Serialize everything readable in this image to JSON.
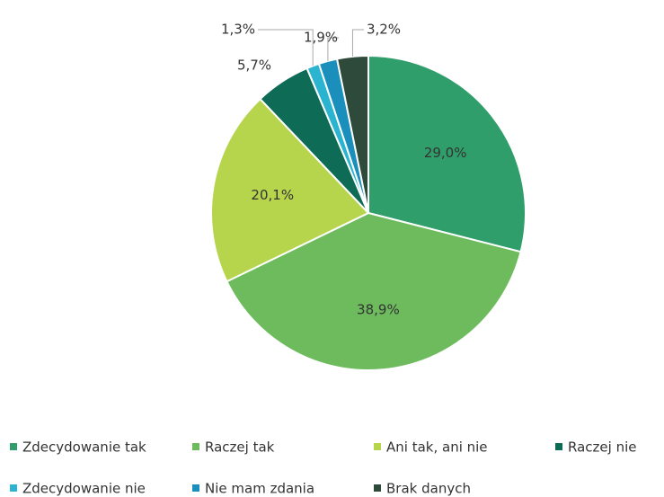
{
  "chart_data": {
    "type": "pie",
    "categories": [
      "Zdecydowanie tak",
      "Raczej tak",
      "Ani tak, ani nie",
      "Raczej nie",
      "Zdecydowanie nie",
      "Nie mam zdania",
      "Brak danych"
    ],
    "values": [
      29.0,
      38.9,
      20.1,
      5.7,
      1.3,
      1.9,
      3.2
    ],
    "value_labels": [
      "29,0%",
      "38,9%",
      "20,1%",
      "5,7%",
      "1,3%",
      "1,9%",
      "3,2%"
    ],
    "colors": [
      "#2f9e6a",
      "#6dbb5d",
      "#b7d54c",
      "#0e6b55",
      "#2ab4cf",
      "#1a8fbb",
      "#2e4a3b"
    ],
    "legend": "bottom"
  }
}
